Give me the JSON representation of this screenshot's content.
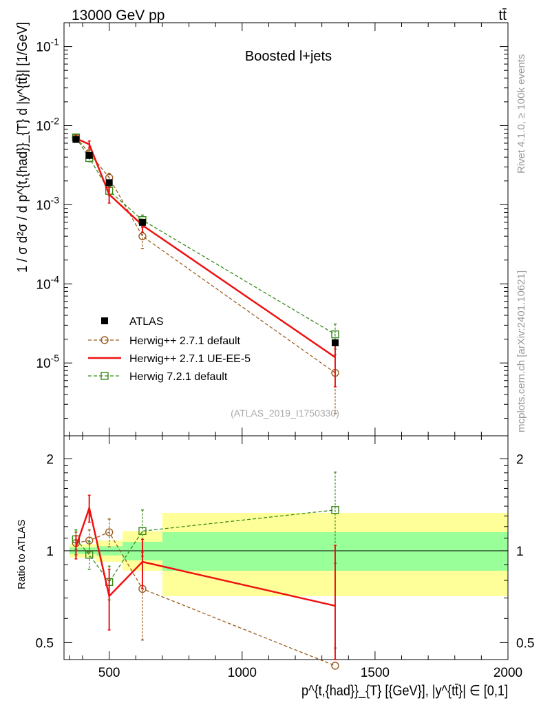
{
  "header": {
    "left": "13000 GeV pp",
    "right": "tt̄"
  },
  "side_labels": {
    "rivet": "Rivet 4.1.0, ≥ 100k events",
    "mcplots": "mcplots.cern.ch [arXiv:2401.10621]"
  },
  "labels": {
    "plot_title": "Boosted l+jets",
    "analysis_id": "(ATLAS_2019_I1750330)",
    "ylabel_main": "1 / σ d²σ / d p^{t,{had}}_{T} d |y^{tt̄}| [1/GeV]",
    "ylabel_ratio": "Ratio to ATLAS",
    "xlabel": "p^{t,{had}}_{T} [{GeV}], |y^{tt̄}| ∈ [0,1]"
  },
  "colors": {
    "data": "#000000",
    "herwigpp_default": "#9a5a1a",
    "herwigpp_ueee5": "#ee1111",
    "herwig7_default": "#3a8a1a",
    "band_inner": "#99ff99",
    "band_outer": "#ffff99"
  },
  "chart_data": [
    {
      "type": "scatter",
      "title": "Boosted l+jets",
      "xlabel": "p_T^{t,had} [GeV], |y^{tt̄}| ∈ [0,1]",
      "ylabel": "1 / σ d²σ / d p_T^{t,had} d |y^{tt̄}| [1/GeV]",
      "yscale": "log",
      "xlim": [
        330,
        2000
      ],
      "ylim": [
        1.2e-06,
        0.2
      ],
      "y_ticks": [
        {
          "value": 0.1,
          "label": "10^-1"
        },
        {
          "value": 0.01,
          "label": "10^-2"
        },
        {
          "value": 0.001,
          "label": "10^-3"
        },
        {
          "value": 0.0001,
          "label": "10^-4"
        },
        {
          "value": 1e-05,
          "label": "10^-5"
        }
      ],
      "legend_position": "lower-left",
      "series": [
        {
          "name": "ATLAS",
          "key": "data",
          "style": "data",
          "x": [
            375,
            425,
            500,
            625,
            1350
          ],
          "xerr_lo": [
            25,
            25,
            50,
            75,
            650
          ],
          "xerr_hi": [
            25,
            25,
            50,
            75,
            650
          ],
          "y": [
            0.0067,
            0.0042,
            0.0019,
            0.0006,
            1.8e-05
          ]
        },
        {
          "name": "Herwig++ 2.7.1 default",
          "key": "herwigpp_default",
          "style": "circle-dashed",
          "x": [
            375,
            425,
            500,
            625,
            1350
          ],
          "y": [
            0.0071,
            0.0045,
            0.0022,
            0.0004,
            7.5e-06
          ],
          "yerr_lo": [
            0.0006,
            0.0004,
            0.0003,
            0.00012,
            5.2e-06
          ],
          "yerr_hi": [
            0.0006,
            0.0004,
            0.0003,
            0.00012,
            5.2e-06
          ]
        },
        {
          "name": "Herwig++ 2.7.1 UE-EE-5",
          "key": "herwigpp_ueee5",
          "style": "solid",
          "x": [
            375,
            425,
            500,
            625,
            1350
          ],
          "y": [
            0.0069,
            0.0058,
            0.00135,
            0.00055,
            1.18e-05
          ],
          "yerr_lo": [
            0.0006,
            0.0006,
            0.0003,
            0.0001,
            6.8e-06
          ],
          "yerr_hi": [
            0.0006,
            0.0006,
            0.0003,
            0.0001,
            6.8e-06
          ]
        },
        {
          "name": "Herwig 7.2.1 default",
          "key": "herwig7_default",
          "style": "square-dashed",
          "x": [
            375,
            425,
            500,
            625,
            1350
          ],
          "y": [
            0.0071,
            0.0039,
            0.0015,
            0.00064,
            2.3e-05
          ],
          "yerr_lo": [
            0.0005,
            0.0004,
            0.0002,
            0.0001,
            8e-06
          ],
          "yerr_hi": [
            0.0005,
            0.0004,
            0.0002,
            0.0001,
            8e-06
          ]
        }
      ]
    },
    {
      "type": "scatter",
      "title": "",
      "xlabel": "p_T^{t,had} [GeV], |y^{tt̄}| ∈ [0,1]",
      "ylabel": "Ratio to ATLAS",
      "yscale": "log",
      "xlim": [
        330,
        2000
      ],
      "ylim": [
        0.44,
        2.38
      ],
      "x_ticks": [
        500,
        1000,
        1500,
        2000
      ],
      "y_ticks": [
        0.5,
        1,
        2
      ],
      "uncertainty_bands": [
        {
          "x_lo": 350,
          "x_hi": 400,
          "inner": [
            0.975,
            1.025
          ],
          "outer": [
            0.95,
            1.05
          ]
        },
        {
          "x_lo": 400,
          "x_hi": 450,
          "inner": [
            0.975,
            1.025
          ],
          "outer": [
            0.95,
            1.05
          ]
        },
        {
          "x_lo": 450,
          "x_hi": 550,
          "inner": [
            0.965,
            1.035
          ],
          "outer": [
            0.92,
            1.08
          ]
        },
        {
          "x_lo": 550,
          "x_hi": 700,
          "inner": [
            0.93,
            1.07
          ],
          "outer": [
            0.86,
            1.16
          ]
        },
        {
          "x_lo": 700,
          "x_hi": 2000,
          "inner": [
            0.86,
            1.15
          ],
          "outer": [
            0.71,
            1.33
          ]
        }
      ],
      "series": [
        {
          "name": "Herwig++ 2.7.1 default",
          "key": "herwigpp_default",
          "x": [
            375,
            425,
            500,
            625,
            1350
          ],
          "y": [
            1.06,
            1.08,
            1.15,
            0.75,
            0.42
          ],
          "yerr_lo": [
            0.09,
            0.09,
            0.12,
            0.24,
            0.06
          ],
          "yerr_hi": [
            0.09,
            0.09,
            0.12,
            0.24,
            0.06
          ]
        },
        {
          "name": "Herwig++ 2.7.1 UE-EE-5",
          "key": "herwigpp_ueee5",
          "x": [
            375,
            425,
            500,
            625,
            1350
          ],
          "y": [
            1.03,
            1.38,
            0.71,
            0.92,
            0.66
          ],
          "yerr_lo": [
            0.09,
            0.14,
            0.16,
            0.17,
            0.38
          ],
          "yerr_hi": [
            0.09,
            0.14,
            0.16,
            0.17,
            0.38
          ]
        },
        {
          "name": "Herwig 7.2.1 default",
          "key": "herwig7_default",
          "x": [
            375,
            425,
            500,
            625,
            1350
          ],
          "y": [
            1.09,
            0.97,
            0.79,
            1.16,
            1.36
          ],
          "yerr_lo": [
            0.08,
            0.1,
            0.1,
            0.2,
            0.45
          ],
          "yerr_hi": [
            0.08,
            0.1,
            0.1,
            0.2,
            0.45
          ]
        }
      ]
    }
  ]
}
